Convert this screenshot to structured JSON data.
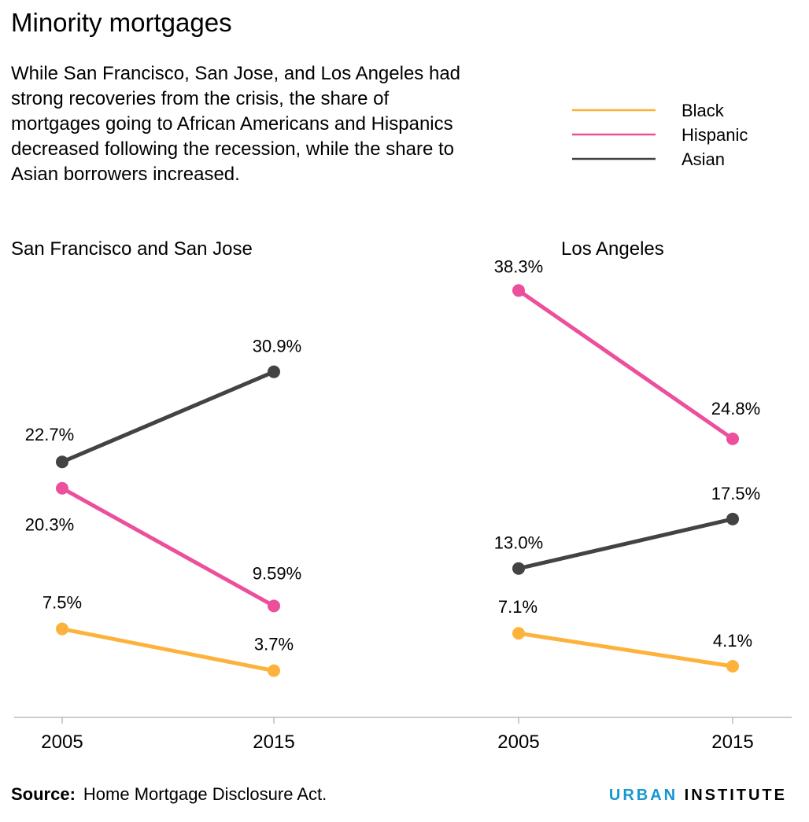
{
  "title": "Minority mortgages",
  "subtitle": "While San Francisco, San Jose, and Los Angeles had strong recoveries from the crisis, the share of mortgages going to African Americans and Hispanics decreased following the recession, while the share to Asian borrowers increased.",
  "source": {
    "label": "Source:",
    "text": "Home Mortgage Disclosure Act."
  },
  "brand": {
    "part1": "URBAN",
    "part2": "INSTITUTE"
  },
  "colors": {
    "Black": "#fdb33b",
    "Hispanic": "#ec4f9c",
    "Asian": "#434343",
    "axis": "#bbbbbb"
  },
  "legend": [
    "Black",
    "Hispanic",
    "Asian"
  ],
  "chart_data": [
    {
      "type": "line",
      "title": "San Francisco and San Jose",
      "x": [
        "2005",
        "2015"
      ],
      "series": [
        {
          "name": "Black",
          "values": [
            7.5,
            3.7
          ],
          "labels": [
            "7.5%",
            "3.7%"
          ]
        },
        {
          "name": "Hispanic",
          "values": [
            20.3,
            9.59
          ],
          "labels": [
            "20.3%",
            "9.59%"
          ]
        },
        {
          "name": "Asian",
          "values": [
            22.7,
            30.9
          ],
          "labels": [
            "22.7%",
            "30.9%"
          ]
        }
      ]
    },
    {
      "type": "line",
      "title": "Los Angeles",
      "x": [
        "2005",
        "2015"
      ],
      "series": [
        {
          "name": "Black",
          "values": [
            7.1,
            4.1
          ],
          "labels": [
            "7.1%",
            "4.1%"
          ]
        },
        {
          "name": "Hispanic",
          "values": [
            38.3,
            24.8
          ],
          "labels": [
            "38.3%",
            "24.8%"
          ]
        },
        {
          "name": "Asian",
          "values": [
            13.0,
            17.5
          ],
          "labels": [
            "13.0%",
            "17.5%"
          ]
        }
      ]
    }
  ]
}
